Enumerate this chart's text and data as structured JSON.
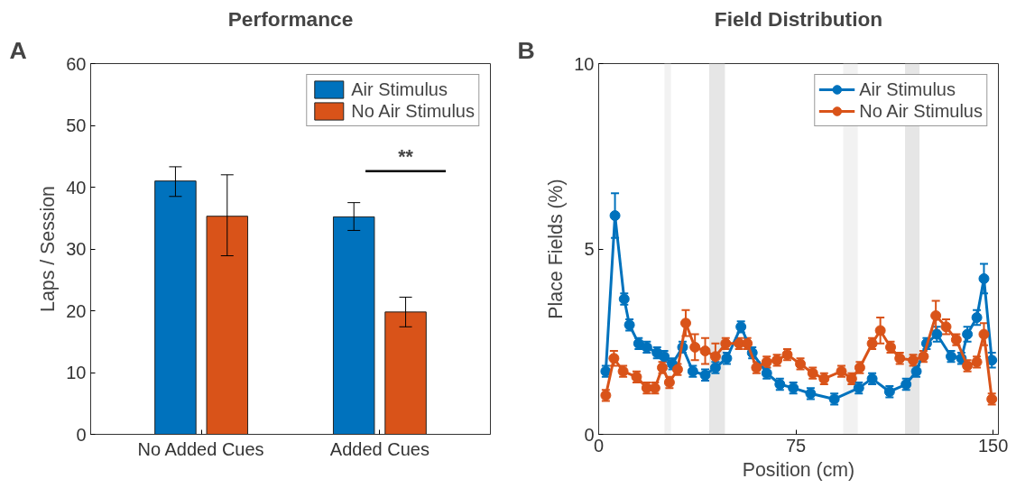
{
  "chart_data": [
    {
      "type": "bar",
      "title": "Performance",
      "ylabel": "Laps / Session",
      "categories": [
        "No Added Cues",
        "Added Cues"
      ],
      "series": [
        {
          "name": "Air Stimulus",
          "color": "#0072bd",
          "values": [
            41,
            35.2
          ],
          "errors": [
            [
              38.5,
              43.3
            ],
            [
              33,
              37.5
            ]
          ]
        },
        {
          "name": "No Air Stimulus",
          "color": "#d95319",
          "values": [
            35.3,
            19.8
          ],
          "errors": [
            [
              28.9,
              42
            ],
            [
              17.4,
              22.2
            ]
          ]
        }
      ],
      "ylim": [
        0,
        60
      ],
      "yticks": [
        0,
        10,
        20,
        30,
        40,
        50,
        60
      ],
      "grid": false,
      "legend": "top right",
      "annotations": [
        "A",
        "**"
      ]
    },
    {
      "type": "line",
      "title": "Field Distribution",
      "xlabel": "Position (cm)",
      "ylabel": "Place Fields (%)",
      "marker": "circle",
      "series": [
        {
          "name": "Air Stimulus",
          "color": "#0072bd",
          "x": [
            2.7,
            6.2,
            9.7,
            11.7,
            15.2,
            18.3,
            22.2,
            24.9,
            28.0,
            31.9,
            35.8,
            40.5,
            44.4,
            48.7,
            54.1,
            58.4,
            63.9,
            68.9,
            74.0,
            80.6,
            89.6,
            98.9,
            104.0,
            110.6,
            116.9,
            120.8,
            124.7,
            128.6,
            134.0,
            137.9,
            140.2,
            143.8,
            146.5,
            149.5
          ],
          "values": [
            1.7,
            5.9,
            3.65,
            2.95,
            2.45,
            2.35,
            2.2,
            2.1,
            1.9,
            2.35,
            1.7,
            1.6,
            1.8,
            2.05,
            2.9,
            2.2,
            1.65,
            1.35,
            1.25,
            1.1,
            0.95,
            1.25,
            1.5,
            1.15,
            1.35,
            1.7,
            2.45,
            2.7,
            2.1,
            2.05,
            2.7,
            3.15,
            4.2,
            2.0
          ],
          "errors": [
            0.15,
            0.6,
            0.15,
            0.15,
            0.15,
            0.15,
            0.15,
            0.15,
            0.15,
            0.15,
            0.15,
            0.15,
            0.15,
            0.15,
            0.15,
            0.15,
            0.15,
            0.15,
            0.15,
            0.15,
            0.15,
            0.15,
            0.15,
            0.15,
            0.15,
            0.15,
            0.15,
            0.2,
            0.15,
            0.15,
            0.2,
            0.2,
            0.4,
            0.2
          ]
        },
        {
          "name": "No Air Stimulus",
          "color": "#d95319",
          "x": [
            2.7,
            5.8,
            9.3,
            14.4,
            18.3,
            21.4,
            24.2,
            26.9,
            30.0,
            33.1,
            36.6,
            40.5,
            44.4,
            48.3,
            53.4,
            56.5,
            60.0,
            63.9,
            67.8,
            71.7,
            76.7,
            81.4,
            85.7,
            92.3,
            96.2,
            99.3,
            104.0,
            107.1,
            111.0,
            114.5,
            119.6,
            123.5,
            128.2,
            132.1,
            136.0,
            140.2,
            143.8,
            146.5,
            149.5
          ],
          "values": [
            1.05,
            2.05,
            1.7,
            1.55,
            1.25,
            1.25,
            1.8,
            1.4,
            1.75,
            3.0,
            2.35,
            2.25,
            2.1,
            2.45,
            2.45,
            2.45,
            1.8,
            1.95,
            2.0,
            2.15,
            1.9,
            1.65,
            1.5,
            1.7,
            1.5,
            1.8,
            2.45,
            2.8,
            2.35,
            2.05,
            2.0,
            2.1,
            3.2,
            2.9,
            2.55,
            1.85,
            1.95,
            2.7,
            0.95
          ],
          "errors": [
            0.15,
            0.2,
            0.15,
            0.15,
            0.15,
            0.15,
            0.15,
            0.15,
            0.15,
            0.35,
            0.35,
            0.35,
            0.35,
            0.15,
            0.15,
            0.15,
            0.15,
            0.15,
            0.15,
            0.15,
            0.15,
            0.15,
            0.15,
            0.15,
            0.15,
            0.15,
            0.15,
            0.35,
            0.15,
            0.15,
            0.15,
            0.15,
            0.4,
            0.2,
            0.15,
            0.15,
            0.15,
            0.3,
            0.15
          ]
        }
      ],
      "xlim": [
        0,
        152
      ],
      "xticks": [
        0,
        75,
        150
      ],
      "ylim": [
        0,
        10
      ],
      "yticks": [
        0,
        5,
        10
      ],
      "grid": false,
      "legend": "top right",
      "bands": [
        {
          "axis": "x",
          "from": 25,
          "to": 27.5,
          "color": "#f2f2f2"
        },
        {
          "axis": "x",
          "from": 42,
          "to": 48,
          "color": "#e6e6e6"
        },
        {
          "axis": "x",
          "from": 93,
          "to": 98.5,
          "color": "#f2f2f2"
        },
        {
          "axis": "x",
          "from": 116.5,
          "to": 122,
          "color": "#e6e6e6"
        }
      ],
      "annotations": [
        "B"
      ]
    }
  ]
}
